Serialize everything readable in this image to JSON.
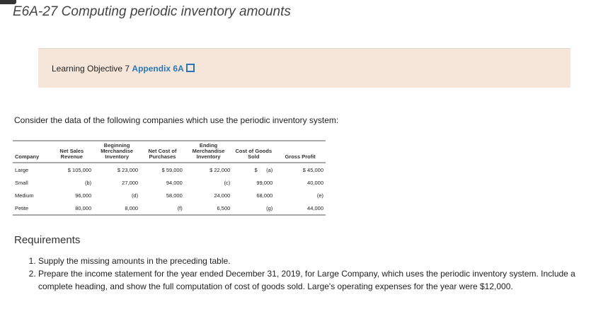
{
  "title": "E6A-27 Computing periodic inventory amounts",
  "learning_objective": {
    "label": "Learning Objective 7",
    "link": "Appendix 6A",
    "icon": "external-window-icon"
  },
  "intro": "Consider the data of the following companies which use the periodic inventory system:",
  "table": {
    "headers": [
      "Company",
      "Net Sales Revenue",
      "Beginning Merchandise Inventory",
      "Net Cost of Purchases",
      "Ending Merchandise Inventory",
      "Cost of Goods Sold",
      "Gross Profit"
    ],
    "rows": [
      [
        "Large",
        "$ 105,000",
        "$ 23,000",
        "$ 59,000",
        "$ 22,000",
        "$      (a)",
        "$ 45,000"
      ],
      [
        "Small",
        "(b)",
        "27,000",
        "94,000",
        "(c)",
        "99,000",
        "40,000"
      ],
      [
        "Medium",
        "96,000",
        "(d)",
        "58,000",
        "24,000",
        "68,000",
        "(e)"
      ],
      [
        "Petite",
        "80,000",
        "8,000",
        "(f)",
        "6,500",
        "(g)",
        "44,000"
      ]
    ]
  },
  "requirements": {
    "heading": "Requirements",
    "items": [
      "Supply the missing amounts in the preceding table.",
      "Prepare the income statement for the year ended December 31, 2019, for Large Company, which uses the periodic inventory system. Include a complete heading, and show the full computation of cost of goods sold. Large's operating expenses for the year were $12,000."
    ]
  }
}
